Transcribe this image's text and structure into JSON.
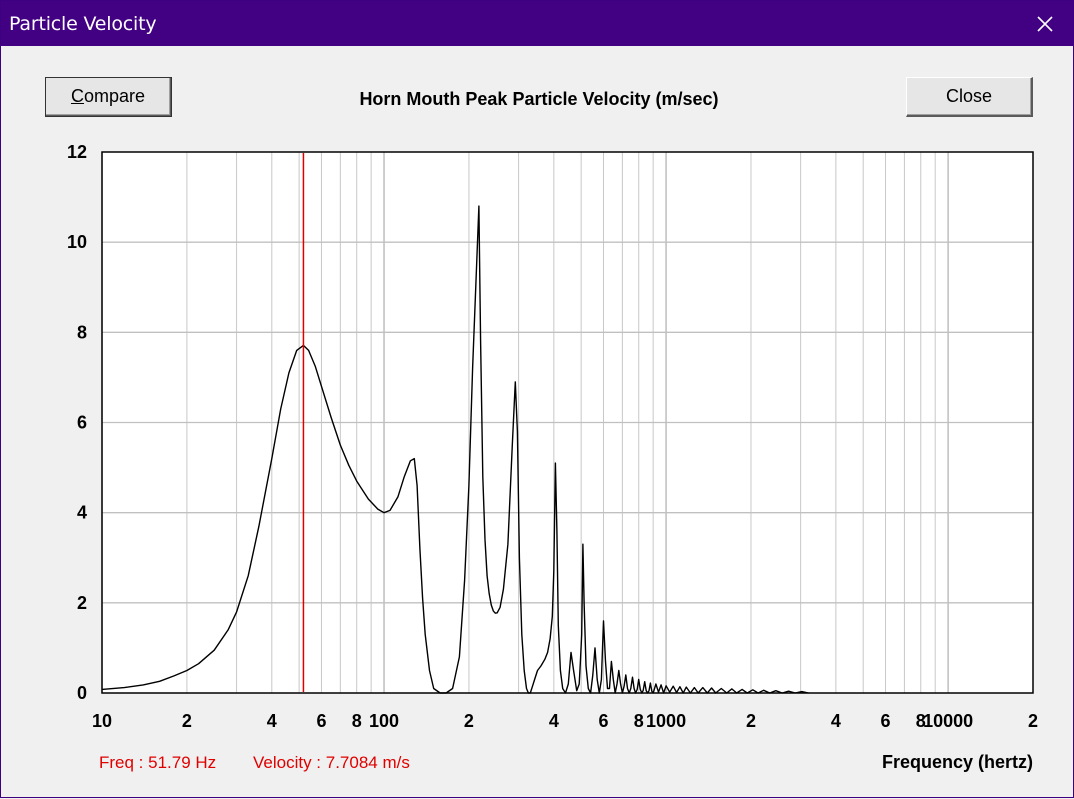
{
  "window": {
    "title": "Particle Velocity"
  },
  "toolbar": {
    "compare_prefix": "C",
    "compare_rest": "ompare",
    "close_label": "Close"
  },
  "readout": {
    "freq": "Freq : 51.79 Hz",
    "velocity": "Velocity : 7.7084 m/s"
  },
  "colors": {
    "titlebar": "#420082",
    "cursor": "#e00000",
    "curve": "#000000",
    "grid": "#c8c8c8"
  },
  "chart_data": {
    "type": "line",
    "title": "Horn Mouth Peak Particle Velocity (m/sec)",
    "xlabel": "Frequency (hertz)",
    "ylabel": "",
    "xscale": "log",
    "xlim": [
      10,
      20000
    ],
    "ylim": [
      0,
      12
    ],
    "grid": true,
    "yticks": [
      "0",
      "2",
      "4",
      "6",
      "8",
      "10",
      "12"
    ],
    "xticks": [
      {
        "v": 10,
        "label": "10"
      },
      {
        "v": 20,
        "label": "2"
      },
      {
        "v": 40,
        "label": "4"
      },
      {
        "v": 60,
        "label": "6"
      },
      {
        "v": 80,
        "label": "8"
      },
      {
        "v": 100,
        "label": "100"
      },
      {
        "v": 200,
        "label": "2"
      },
      {
        "v": 400,
        "label": "4"
      },
      {
        "v": 600,
        "label": "6"
      },
      {
        "v": 800,
        "label": "8"
      },
      {
        "v": 1000,
        "label": "1000"
      },
      {
        "v": 2000,
        "label": "2"
      },
      {
        "v": 4000,
        "label": "4"
      },
      {
        "v": 6000,
        "label": "6"
      },
      {
        "v": 8000,
        "label": "8"
      },
      {
        "v": 10000,
        "label": "10000"
      },
      {
        "v": 20000,
        "label": "2"
      }
    ],
    "cursor_x": 51.79,
    "series": [
      {
        "name": "Particle Velocity",
        "x": [
          10,
          12,
          14,
          16,
          18,
          20,
          22,
          25,
          28,
          30,
          33,
          36,
          40,
          43,
          46,
          49,
          51.79,
          54,
          57,
          60,
          65,
          70,
          75,
          80,
          88,
          95,
          100,
          105,
          112,
          118,
          124,
          128,
          131,
          134,
          137,
          140,
          145,
          150,
          158,
          166,
          175,
          185,
          193,
          200,
          206,
          212,
          217,
          220,
          224,
          228,
          232,
          236,
          240,
          244,
          248,
          252,
          258,
          265,
          275,
          285,
          292,
          297,
          302,
          308,
          314,
          320,
          325,
          330,
          336,
          342,
          350,
          360,
          372,
          380,
          388,
          395,
          400,
          405,
          410,
          415,
          422,
          430,
          440,
          450,
          460,
          470,
          482,
          492,
          497,
          502,
          507,
          512,
          520,
          530,
          540,
          550,
          560,
          570,
          580,
          590,
          600,
          610,
          620,
          630,
          640,
          650,
          660,
          670,
          680,
          690,
          700,
          710,
          720,
          730,
          740,
          750,
          760,
          770,
          780,
          790,
          800,
          810,
          820,
          830,
          840,
          850,
          860,
          870,
          880,
          890,
          900,
          920,
          940,
          960,
          980,
          1000,
          1030,
          1060,
          1090,
          1120,
          1150,
          1180,
          1220,
          1260,
          1300,
          1350,
          1400,
          1450,
          1500,
          1570,
          1640,
          1710,
          1780,
          1860,
          1940,
          2030,
          2120,
          2220,
          2330,
          2450,
          2580,
          2720,
          2870,
          3030,
          3200
        ],
        "y": [
          0.08,
          0.12,
          0.18,
          0.26,
          0.38,
          0.5,
          0.65,
          0.95,
          1.4,
          1.8,
          2.6,
          3.7,
          5.2,
          6.3,
          7.1,
          7.6,
          7.71,
          7.6,
          7.25,
          6.8,
          6.1,
          5.5,
          5.05,
          4.7,
          4.3,
          4.08,
          4.0,
          4.05,
          4.35,
          4.8,
          5.15,
          5.2,
          4.6,
          3.2,
          2.1,
          1.3,
          0.5,
          0.1,
          0.0,
          0.0,
          0.1,
          0.8,
          2.5,
          4.6,
          7.2,
          9.2,
          10.8,
          7.8,
          4.8,
          3.4,
          2.6,
          2.2,
          1.95,
          1.82,
          1.77,
          1.78,
          1.9,
          2.3,
          3.3,
          5.5,
          6.9,
          5.8,
          3.0,
          1.3,
          0.5,
          0.1,
          0.0,
          0.0,
          0.15,
          0.3,
          0.5,
          0.6,
          0.75,
          0.9,
          1.2,
          1.7,
          2.7,
          5.1,
          3.6,
          1.5,
          0.5,
          0.1,
          0.0,
          0.2,
          0.9,
          0.5,
          0.05,
          0.2,
          0.7,
          1.3,
          3.3,
          2.0,
          0.6,
          0.1,
          0.0,
          0.4,
          1.0,
          0.3,
          0.0,
          0.3,
          1.6,
          0.7,
          0.1,
          0.1,
          0.7,
          0.3,
          0.0,
          0.2,
          0.5,
          0.2,
          0.0,
          0.15,
          0.4,
          0.1,
          0.0,
          0.1,
          0.35,
          0.1,
          0.0,
          0.08,
          0.3,
          0.08,
          0.0,
          0.06,
          0.25,
          0.05,
          0.0,
          0.05,
          0.22,
          0.04,
          0.0,
          0.2,
          0.02,
          0.18,
          0.0,
          0.16,
          0.02,
          0.15,
          0.01,
          0.14,
          0.0,
          0.13,
          0.0,
          0.12,
          0.0,
          0.12,
          0.0,
          0.11,
          0.0,
          0.1,
          0.0,
          0.09,
          0.0,
          0.08,
          0.0,
          0.07,
          0.0,
          0.06,
          0.0,
          0.05,
          0.0,
          0.04,
          0.0,
          0.03,
          0.0
        ]
      }
    ]
  }
}
